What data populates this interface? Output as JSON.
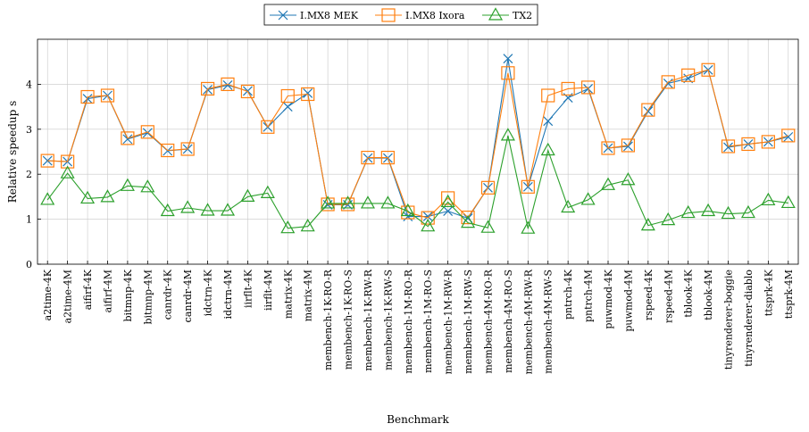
{
  "chart_data": {
    "type": "line",
    "xlabel": "Benchmark",
    "ylabel": "Relative speedup s",
    "ylim": [
      0,
      5
    ],
    "yticks": [
      0,
      1,
      2,
      3,
      4
    ],
    "grid": true,
    "legend_position": "top-center",
    "categories": [
      "a2time-4K",
      "a2time-4M",
      "aifirf-4K",
      "aifirf-4M",
      "bitmnp-4K",
      "bitmnp-4M",
      "canrdr-4K",
      "canrdr-4M",
      "idctrn-4K",
      "idctrn-4M",
      "iirflt-4K",
      "iirflt-4M",
      "matrix-4K",
      "matrix-4M",
      "membench-1K-RO-R",
      "membench-1K-RO-S",
      "membench-1K-RW-R",
      "membench-1K-RW-S",
      "membench-1M-RO-R",
      "membench-1M-RO-S",
      "membench-1M-RW-R",
      "membench-1M-RW-S",
      "membench-4M-RO-R",
      "membench-4M-RO-S",
      "membench-4M-RW-R",
      "membench-4M-RW-S",
      "pntrch-4K",
      "pntrch-4M",
      "puwmod-4K",
      "puwmod-4M",
      "rspeed-4K",
      "rspeed-4M",
      "tblook-4K",
      "tblook-4M",
      "tinyrenderer-boggie",
      "tinyrenderer-diablo",
      "ttsprk-4K",
      "ttsprk-4M"
    ],
    "series": [
      {
        "name": "I.MX8 MEK",
        "color": "#1f77b4",
        "marker": "x",
        "values": [
          2.3,
          2.28,
          3.68,
          3.75,
          2.78,
          2.92,
          2.52,
          2.56,
          3.88,
          3.98,
          3.85,
          3.05,
          3.5,
          3.8,
          1.32,
          1.32,
          2.36,
          2.36,
          1.06,
          1.06,
          1.18,
          1.02,
          1.7,
          4.57,
          1.72,
          3.18,
          3.7,
          3.9,
          2.58,
          2.62,
          3.4,
          4.02,
          4.13,
          4.32,
          2.6,
          2.67,
          2.72,
          2.83
        ]
      },
      {
        "name": "I.MX8 Ixora",
        "color": "#ff7f0e",
        "marker": "square",
        "values": [
          2.3,
          2.28,
          3.72,
          3.75,
          2.8,
          2.94,
          2.53,
          2.56,
          3.9,
          4.0,
          3.84,
          3.05,
          3.74,
          3.78,
          1.33,
          1.33,
          2.37,
          2.37,
          1.15,
          1.03,
          1.47,
          1.04,
          1.7,
          4.25,
          1.72,
          3.75,
          3.9,
          3.93,
          2.58,
          2.64,
          3.43,
          4.05,
          4.2,
          4.32,
          2.62,
          2.67,
          2.72,
          2.86
        ]
      },
      {
        "name": "TX2",
        "color": "#2ca02c",
        "marker": "triangle",
        "values": [
          1.43,
          2.02,
          1.46,
          1.49,
          1.74,
          1.71,
          1.18,
          1.25,
          1.19,
          1.19,
          1.5,
          1.58,
          0.8,
          0.84,
          1.35,
          1.35,
          1.35,
          1.35,
          1.18,
          0.84,
          1.38,
          0.92,
          0.81,
          2.86,
          0.79,
          2.53,
          1.26,
          1.43,
          1.76,
          1.87,
          0.86,
          0.98,
          1.14,
          1.18,
          1.12,
          1.14,
          1.42,
          1.36
        ]
      }
    ]
  }
}
